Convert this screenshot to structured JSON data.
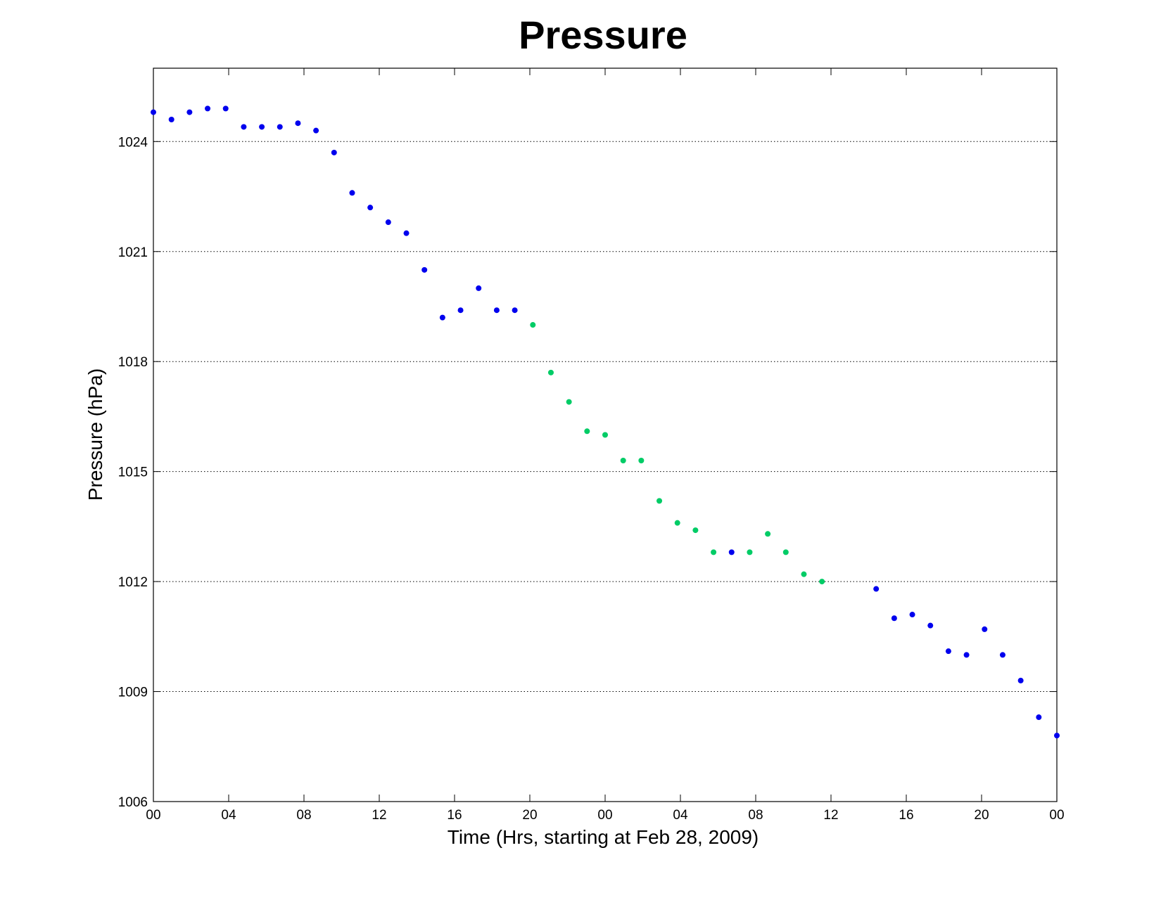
{
  "chart_data": {
    "type": "scatter",
    "title": "Pressure",
    "xlabel": "Time (Hrs, starting at Feb 28, 2009)",
    "ylabel": "Pressure (hPa)",
    "xlim": [
      0,
      48
    ],
    "ylim": [
      1006,
      1026
    ],
    "x_tick_values": [
      0,
      4,
      8,
      12,
      16,
      20,
      24,
      28,
      32,
      36,
      40,
      44,
      48
    ],
    "x_tick_labels": [
      "00",
      "04",
      "08",
      "12",
      "16",
      "20",
      "00",
      "04",
      "08",
      "12",
      "16",
      "20",
      "00"
    ],
    "y_ticks": [
      1006,
      1009,
      1012,
      1015,
      1018,
      1021,
      1024
    ],
    "grid": "horizontal-dotted",
    "colors": {
      "blue": "#0000ee",
      "green": "#00cc66"
    },
    "series": [
      {
        "color": "#0000ee",
        "points": [
          [
            0,
            1024.8
          ],
          [
            1,
            1024.6
          ],
          [
            2,
            1024.8
          ],
          [
            3,
            1024.9
          ],
          [
            4,
            1024.9
          ],
          [
            5,
            1024.4
          ],
          [
            6,
            1024.4
          ],
          [
            7,
            1024.4
          ],
          [
            8,
            1024.5
          ],
          [
            9,
            1024.3
          ],
          [
            10,
            1023.7
          ],
          [
            11,
            1022.6
          ],
          [
            12,
            1022.2
          ],
          [
            13,
            1021.8
          ],
          [
            14,
            1021.5
          ],
          [
            15,
            1020.5
          ],
          [
            16,
            1019.2
          ],
          [
            17,
            1019.4
          ],
          [
            18,
            1020.0
          ],
          [
            19,
            1019.4
          ],
          [
            20,
            1019.4
          ],
          [
            32,
            1012.8
          ],
          [
            40,
            1011.8
          ],
          [
            41,
            1011.0
          ],
          [
            42,
            1011.1
          ],
          [
            43,
            1010.8
          ],
          [
            44,
            1010.1
          ],
          [
            45,
            1010.0
          ],
          [
            46,
            1010.7
          ],
          [
            47,
            1010.0
          ],
          [
            48,
            1009.3
          ],
          [
            49,
            1008.3
          ],
          [
            50,
            1007.8
          ]
        ]
      },
      {
        "color": "#00cc66",
        "points": [
          [
            21,
            1019.0
          ],
          [
            22,
            1017.7
          ],
          [
            23,
            1016.9
          ],
          [
            24,
            1016.1
          ],
          [
            25,
            1016.0
          ],
          [
            26,
            1015.3
          ],
          [
            27,
            1015.3
          ],
          [
            28,
            1014.2
          ],
          [
            29,
            1013.6
          ],
          [
            30,
            1013.4
          ],
          [
            31,
            1012.8
          ],
          [
            33,
            1012.8
          ],
          [
            34,
            1013.3
          ],
          [
            35,
            1012.8
          ],
          [
            36,
            1012.2
          ],
          [
            37,
            1012.0
          ]
        ]
      }
    ]
  }
}
